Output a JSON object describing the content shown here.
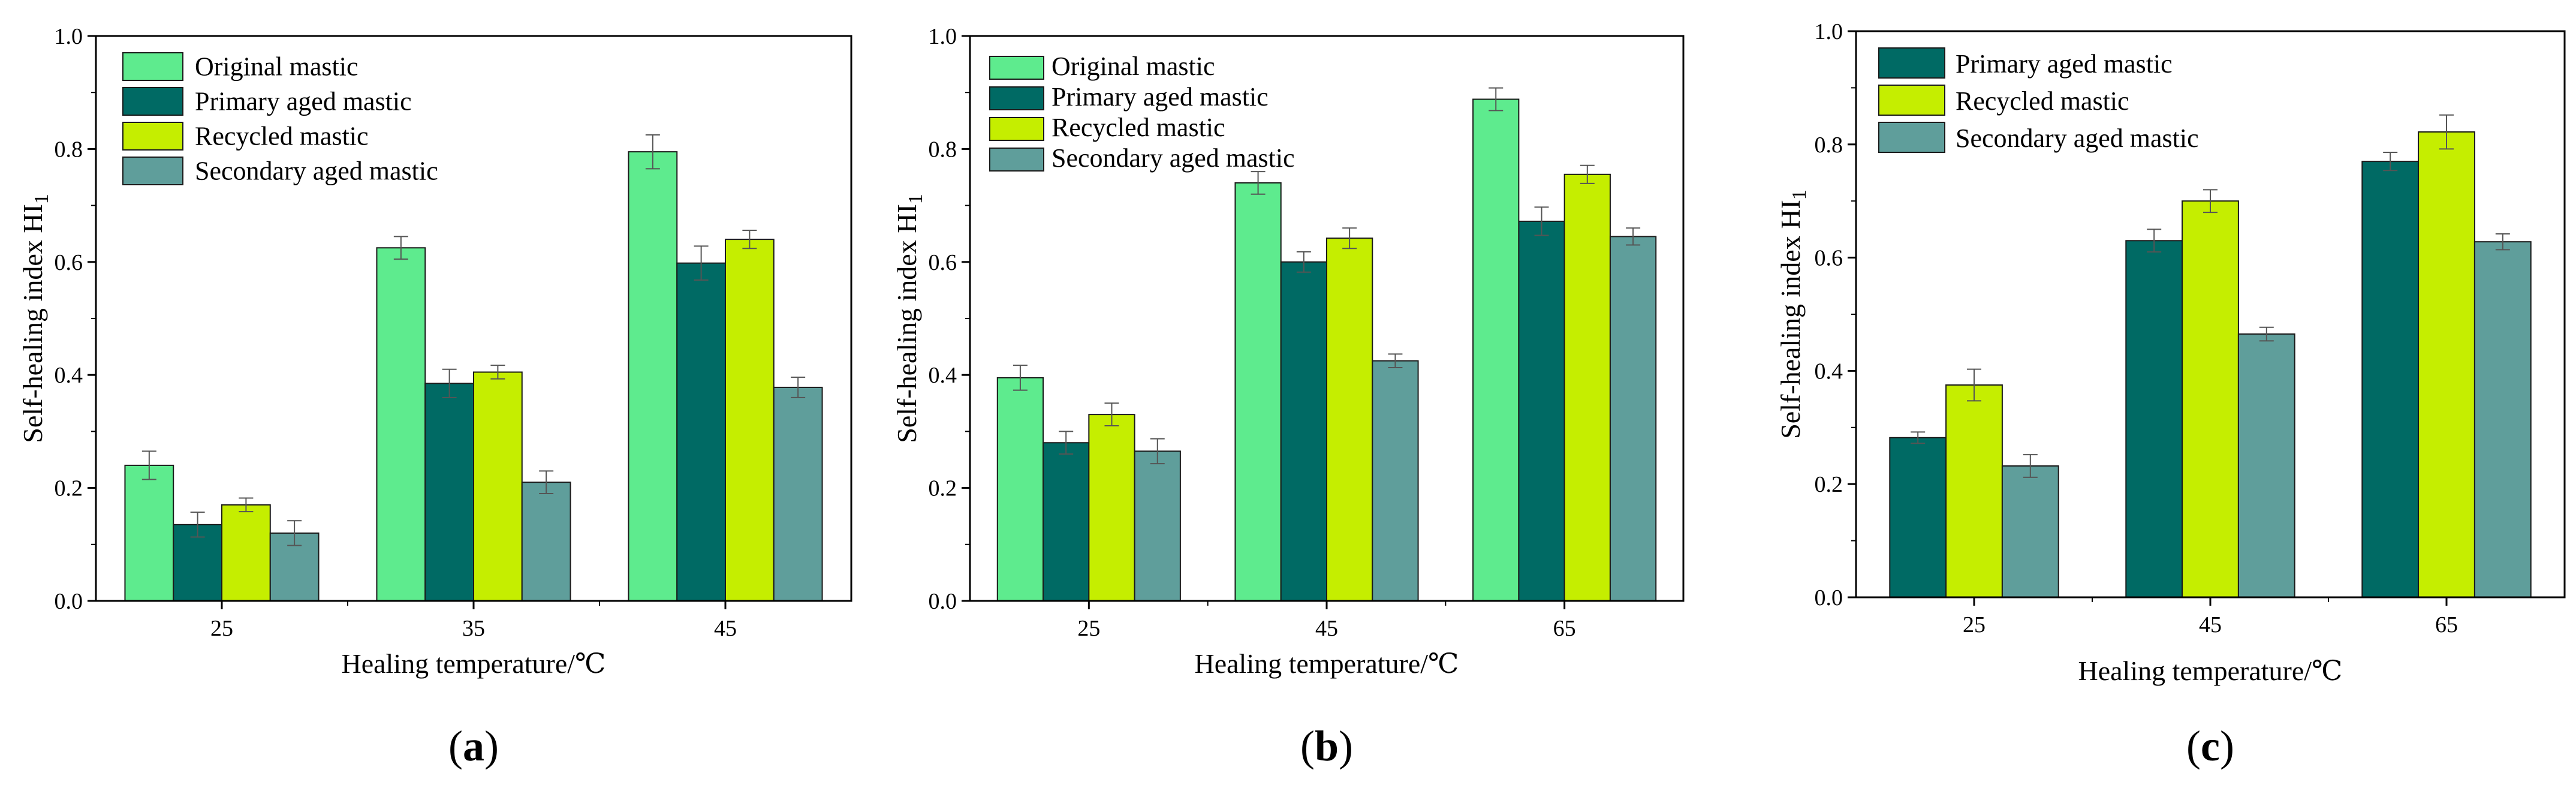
{
  "figure": {
    "panel_labels": [
      {
        "open": "(",
        "letter": "a",
        "close": ")"
      },
      {
        "open": "(",
        "letter": "b",
        "close": ")"
      },
      {
        "open": "(",
        "letter": "c",
        "close": ")"
      }
    ]
  },
  "colors": {
    "original": "#5EEB8E",
    "primary": "#006A64",
    "recycled": "#C5EE00",
    "secondary": "#5F9E9B",
    "errorbar": "#555555",
    "axis": "#000000"
  },
  "chart_data": [
    {
      "type": "bar",
      "title": "",
      "xlabel": "Healing temperature/℃",
      "ylabel_main": "Self-healing index HI",
      "ylabel_sub": "1",
      "ylim": [
        0,
        1.0
      ],
      "yticks": [
        "0.0",
        "0.2",
        "0.4",
        "0.6",
        "0.8",
        "1.0"
      ],
      "legend_position": "top-left",
      "categories": [
        "25",
        "35",
        "45"
      ],
      "series": [
        {
          "name": "Original mastic",
          "color_key": "original",
          "values": [
            0.24,
            0.625,
            0.795
          ],
          "errors": [
            0.025,
            0.02,
            0.03
          ]
        },
        {
          "name": "Primary aged mastic",
          "color_key": "primary",
          "values": [
            0.135,
            0.385,
            0.598
          ],
          "errors": [
            0.022,
            0.025,
            0.03
          ]
        },
        {
          "name": "Recycled mastic",
          "color_key": "recycled",
          "values": [
            0.17,
            0.405,
            0.64
          ],
          "errors": [
            0.012,
            0.012,
            0.016
          ]
        },
        {
          "name": "Secondary aged mastic",
          "color_key": "secondary",
          "values": [
            0.12,
            0.21,
            0.378
          ],
          "errors": [
            0.022,
            0.02,
            0.018
          ]
        }
      ]
    },
    {
      "type": "bar",
      "title": "",
      "xlabel": "Healing temperature/℃",
      "ylabel_main": "Self-healing index HI",
      "ylabel_sub": "1",
      "ylim": [
        0,
        1.0
      ],
      "yticks": [
        "0.0",
        "0.2",
        "0.4",
        "0.6",
        "0.8",
        "1.0"
      ],
      "legend_position": "top-left",
      "categories": [
        "25",
        "45",
        "65"
      ],
      "series": [
        {
          "name": "Original mastic",
          "color_key": "original",
          "values": [
            0.395,
            0.74,
            0.888
          ],
          "errors": [
            0.022,
            0.02,
            0.02
          ]
        },
        {
          "name": "Primary aged mastic",
          "color_key": "primary",
          "values": [
            0.28,
            0.6,
            0.672
          ],
          "errors": [
            0.02,
            0.018,
            0.025
          ]
        },
        {
          "name": "Recycled mastic",
          "color_key": "recycled",
          "values": [
            0.33,
            0.642,
            0.755
          ],
          "errors": [
            0.02,
            0.018,
            0.016
          ]
        },
        {
          "name": "Secondary aged mastic",
          "color_key": "secondary",
          "values": [
            0.265,
            0.425,
            0.645
          ],
          "errors": [
            0.022,
            0.012,
            0.015
          ]
        }
      ]
    },
    {
      "type": "bar",
      "title": "",
      "xlabel": "Healing temperature/℃",
      "ylabel_main": "Self-healing index HI",
      "ylabel_sub": "1",
      "ylim": [
        0,
        1.0
      ],
      "yticks": [
        "0.0",
        "0.2",
        "0.4",
        "0.6",
        "0.8",
        "1.0"
      ],
      "legend_position": "top-left",
      "categories": [
        "25",
        "45",
        "65"
      ],
      "series": [
        {
          "name": "Primary aged mastic",
          "color_key": "primary",
          "values": [
            0.282,
            0.63,
            0.77
          ],
          "errors": [
            0.01,
            0.02,
            0.016
          ]
        },
        {
          "name": "Recycled mastic",
          "color_key": "recycled",
          "values": [
            0.375,
            0.7,
            0.822
          ],
          "errors": [
            0.028,
            0.02,
            0.03
          ]
        },
        {
          "name": "Secondary aged mastic",
          "color_key": "secondary",
          "values": [
            0.232,
            0.465,
            0.628
          ],
          "errors": [
            0.02,
            0.012,
            0.014
          ]
        }
      ]
    }
  ]
}
